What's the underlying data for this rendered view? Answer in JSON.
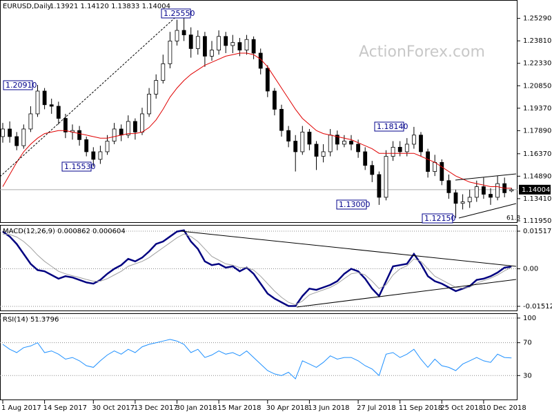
{
  "chart_data": [
    {
      "type": "candlestick",
      "title": "EURUSD,Daily",
      "subtitle": "1.13921 1.14120 1.13833 1.14004",
      "categories": [
        "1 Aug 2017",
        null,
        null,
        null,
        null,
        null,
        "14 Sep 2017",
        null,
        null,
        null,
        null,
        null,
        null,
        "30 Oct 2017",
        null,
        null,
        null,
        null,
        null,
        "13 Dec 2017",
        null,
        null,
        null,
        null,
        null,
        "30 Jan 2018",
        null,
        null,
        null,
        null,
        null,
        "15 Mar 2018",
        null,
        null,
        null,
        null,
        null,
        null,
        "30 Apr 2018",
        null,
        null,
        null,
        null,
        null,
        "13 Jun 2018",
        null,
        null,
        null,
        null,
        null,
        null,
        "27 Jul 2018",
        null,
        null,
        null,
        null,
        null,
        "11 Sep 2018",
        null,
        null,
        null,
        null,
        null,
        "25 Oct 2018",
        null,
        null,
        null,
        null,
        null,
        "10 Dec 2018",
        null,
        null,
        null,
        null
      ],
      "open": [
        1.175,
        1.18,
        1.175,
        1.169,
        1.18,
        1.19,
        1.205,
        1.196,
        1.195,
        1.187,
        1.178,
        1.179,
        1.173,
        1.165,
        1.16,
        1.165,
        1.172,
        1.18,
        1.176,
        1.185,
        1.178,
        1.19,
        1.203,
        1.212,
        1.223,
        1.238,
        1.245,
        1.242,
        1.233,
        1.241,
        1.228,
        1.232,
        1.241,
        1.235,
        1.237,
        1.232,
        1.239,
        1.23,
        1.22,
        1.205,
        1.193,
        1.179,
        1.172,
        1.165,
        1.178,
        1.17,
        1.162,
        1.165,
        1.176,
        1.17,
        1.172,
        1.17,
        1.165,
        1.156,
        1.15,
        1.135,
        1.162,
        1.168,
        1.165,
        1.17,
        1.176,
        1.165,
        1.152,
        1.158,
        1.146,
        1.138,
        1.131,
        1.132,
        1.135,
        1.142,
        1.137,
        1.135,
        1.144,
        1.13921
      ],
      "high": [
        1.184,
        1.185,
        1.178,
        1.183,
        1.195,
        1.2091,
        1.207,
        1.2,
        1.198,
        1.19,
        1.183,
        1.182,
        1.175,
        1.168,
        1.169,
        1.176,
        1.184,
        1.183,
        1.189,
        1.187,
        1.194,
        1.207,
        1.216,
        1.229,
        1.244,
        1.252,
        1.2555,
        1.247,
        1.245,
        1.244,
        1.238,
        1.245,
        1.244,
        1.242,
        1.24,
        1.242,
        1.241,
        1.233,
        1.222,
        1.207,
        1.196,
        1.182,
        1.176,
        1.182,
        1.18,
        1.172,
        1.17,
        1.18,
        1.179,
        1.176,
        1.176,
        1.173,
        1.168,
        1.159,
        1.152,
        1.166,
        1.172,
        1.172,
        1.174,
        1.1814,
        1.178,
        1.167,
        1.163,
        1.16,
        1.15,
        1.14,
        1.137,
        1.14,
        1.146,
        1.148,
        1.141,
        1.149,
        1.148,
        1.1412
      ],
      "low": [
        1.171,
        1.171,
        1.166,
        1.167,
        1.178,
        1.188,
        1.193,
        1.19,
        1.183,
        1.174,
        1.173,
        1.169,
        1.162,
        1.1553,
        1.157,
        1.163,
        1.17,
        1.172,
        1.174,
        1.173,
        1.176,
        1.188,
        1.2,
        1.21,
        1.22,
        1.235,
        1.238,
        1.227,
        1.229,
        1.221,
        1.225,
        1.229,
        1.23,
        1.23,
        1.228,
        1.229,
        1.226,
        1.216,
        1.201,
        1.189,
        1.175,
        1.168,
        1.152,
        1.163,
        1.166,
        1.153,
        1.158,
        1.162,
        1.166,
        1.168,
        1.166,
        1.161,
        1.153,
        1.145,
        1.13,
        1.133,
        1.159,
        1.162,
        1.162,
        1.167,
        1.162,
        1.148,
        1.149,
        1.143,
        1.134,
        1.1215,
        1.127,
        1.128,
        1.132,
        1.134,
        1.13,
        1.133,
        1.135,
        1.13833
      ],
      "close": [
        1.18,
        1.175,
        1.169,
        1.18,
        1.19,
        1.205,
        1.196,
        1.195,
        1.187,
        1.178,
        1.179,
        1.173,
        1.165,
        1.16,
        1.165,
        1.172,
        1.18,
        1.176,
        1.185,
        1.178,
        1.19,
        1.203,
        1.212,
        1.223,
        1.238,
        1.245,
        1.242,
        1.233,
        1.241,
        1.228,
        1.232,
        1.241,
        1.235,
        1.237,
        1.232,
        1.239,
        1.23,
        1.22,
        1.205,
        1.193,
        1.179,
        1.172,
        1.165,
        1.178,
        1.17,
        1.162,
        1.165,
        1.176,
        1.17,
        1.172,
        1.17,
        1.165,
        1.156,
        1.15,
        1.135,
        1.162,
        1.168,
        1.165,
        1.17,
        1.176,
        1.165,
        1.152,
        1.158,
        1.146,
        1.138,
        1.131,
        1.132,
        1.135,
        1.142,
        1.137,
        1.135,
        1.144,
        1.138,
        1.14004
      ],
      "candle_color": "#000000",
      "ma": {
        "color": "#e00000",
        "values": [
          1.142,
          1.15,
          1.158,
          1.165,
          1.17,
          1.174,
          1.177,
          1.178,
          1.179,
          1.179,
          1.178,
          1.177,
          1.176,
          1.175,
          1.174,
          1.174,
          1.175,
          1.176,
          1.177,
          1.177,
          1.178,
          1.181,
          1.186,
          1.193,
          1.201,
          1.207,
          1.212,
          1.216,
          1.219,
          1.222,
          1.224,
          1.226,
          1.228,
          1.229,
          1.23,
          1.23,
          1.229,
          1.226,
          1.221,
          1.214,
          1.207,
          1.2,
          1.193,
          1.187,
          1.183,
          1.179,
          1.177,
          1.176,
          1.175,
          1.174,
          1.173,
          1.171,
          1.169,
          1.167,
          1.164,
          1.164,
          1.164,
          1.164,
          1.164,
          1.164,
          1.162,
          1.16,
          1.158,
          1.155,
          1.152,
          1.149,
          1.147,
          1.145,
          1.144,
          1.143,
          1.142,
          1.142,
          1.141,
          1.141
        ]
      },
      "last_price": {
        "value": 1.14004,
        "label": "1.14004"
      },
      "annotations": [
        "1.25550",
        "1.20910",
        "1.15530",
        "1.13000",
        "1.18140",
        "1.12150",
        "61.8"
      ],
      "watermark": "ActionForex.com",
      "ylim": [
        1.1186,
        1.2641
      ],
      "yticks": [
        {
          "value": 1.2529,
          "label": "1.25290"
        },
        {
          "value": 1.2381,
          "label": "1.23810"
        },
        {
          "value": 1.2233,
          "label": "1.22330"
        },
        {
          "value": 1.2085,
          "label": "1.20850"
        },
        {
          "value": 1.1937,
          "label": "1.19370"
        },
        {
          "value": 1.1789,
          "label": "1.17890"
        },
        {
          "value": 1.1637,
          "label": "1.16370"
        },
        {
          "value": 1.1489,
          "label": "1.14890"
        },
        {
          "value": 1.1341,
          "label": "1.13410"
        },
        {
          "value": 1.1195,
          "label": "1.11950"
        }
      ]
    },
    {
      "type": "line",
      "title": "MACD(12,26,9) 0.000862 0.000604",
      "series": [
        {
          "color": "#000080",
          "width": 2.5,
          "values": [
            0.015,
            0.013,
            0.01,
            0.006,
            0.002,
            -0.0005,
            -0.001,
            -0.0025,
            -0.004,
            -0.003,
            -0.0035,
            -0.0045,
            -0.0055,
            -0.006,
            -0.0045,
            -0.002,
            0.0,
            0.0015,
            0.004,
            0.003,
            0.0045,
            0.007,
            0.01,
            0.011,
            0.013,
            0.015,
            0.0155,
            0.011,
            0.008,
            0.003,
            0.0015,
            0.002,
            0.0005,
            0.001,
            -0.001,
            0.0005,
            -0.002,
            -0.006,
            -0.01,
            -0.012,
            -0.0135,
            -0.015,
            -0.015,
            -0.011,
            -0.008,
            -0.0085,
            -0.0075,
            -0.0065,
            -0.005,
            -0.002,
            0.0,
            -0.001,
            -0.004,
            -0.008,
            -0.011,
            -0.005,
            0.001,
            0.0015,
            0.002,
            0.006,
            0.002,
            -0.003,
            -0.005,
            -0.006,
            -0.0075,
            -0.009,
            -0.008,
            -0.007,
            -0.0045,
            -0.004,
            -0.003,
            -0.0015,
            0.0005,
            0.000862
          ]
        },
        {
          "color": "#a0a0a0",
          "width": 1,
          "values": [
            0.014,
            0.0138,
            0.0128,
            0.011,
            0.0085,
            0.0055,
            0.003,
            0.001,
            -0.001,
            -0.002,
            -0.0028,
            -0.0035,
            -0.0043,
            -0.005,
            -0.005,
            -0.004,
            -0.0025,
            -0.001,
            0.001,
            0.002,
            0.003,
            0.0045,
            0.0065,
            0.0085,
            0.0105,
            0.0125,
            0.014,
            0.013,
            0.011,
            0.008,
            0.005,
            0.0035,
            0.002,
            0.0015,
            0.0005,
            0.0005,
            -0.0005,
            -0.003,
            -0.006,
            -0.009,
            -0.0115,
            -0.0135,
            -0.0145,
            -0.013,
            -0.0105,
            -0.0095,
            -0.0085,
            -0.0075,
            -0.006,
            -0.004,
            -0.002,
            -0.0015,
            -0.0025,
            -0.005,
            -0.008,
            -0.0065,
            -0.0025,
            0.0,
            0.0012,
            0.004,
            0.003,
            0.0,
            -0.003,
            -0.0045,
            -0.006,
            -0.0075,
            -0.0078,
            -0.0074,
            -0.0058,
            -0.0048,
            -0.0038,
            -0.0025,
            -0.0008,
            0.000604
          ]
        }
      ],
      "ylim": [
        -0.01681,
        0.0174
      ],
      "yticks": [
        0.015178,
        {
          "value": 0,
          "label": "0.00"
        },
        -0.015126
      ]
    },
    {
      "type": "line",
      "title": "RSI(14) 51.3796",
      "series": [
        {
          "color": "#1e90ff",
          "width": 1,
          "values": [
            68,
            62,
            58,
            64,
            66,
            70,
            58,
            60,
            56,
            50,
            52,
            48,
            42,
            40,
            48,
            55,
            60,
            56,
            62,
            58,
            65,
            68,
            70,
            72,
            74,
            72,
            68,
            58,
            62,
            52,
            55,
            60,
            56,
            58,
            54,
            60,
            52,
            44,
            36,
            32,
            30,
            34,
            26,
            48,
            44,
            40,
            46,
            54,
            50,
            52,
            52,
            48,
            42,
            38,
            30,
            56,
            58,
            52,
            56,
            62,
            50,
            40,
            50,
            42,
            40,
            36,
            44,
            48,
            52,
            48,
            46,
            56,
            52,
            51.3796
          ]
        }
      ],
      "ylim": [
        0,
        105
      ],
      "yticks": [
        100,
        70,
        30
      ]
    }
  ]
}
